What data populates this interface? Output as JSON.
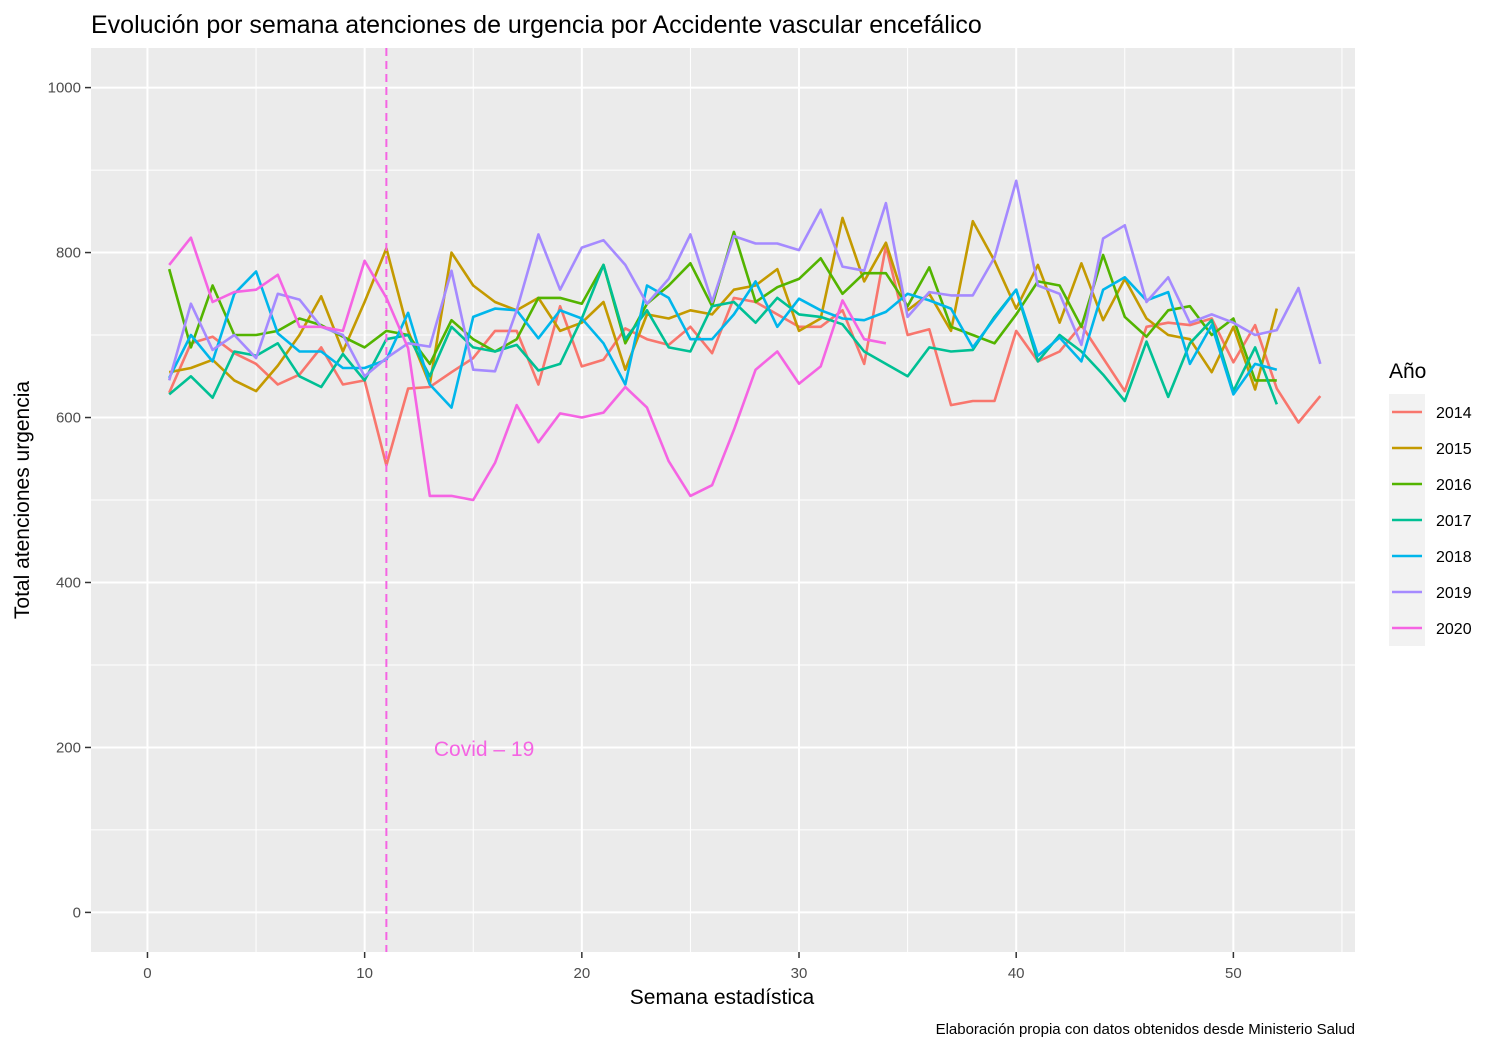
{
  "chart_data": {
    "type": "line",
    "title": "Evolución por semana atenciones de urgencia por Accidente vascular encefálico",
    "xlabel": "Semana estadística",
    "ylabel": "Total atenciones urgencia",
    "caption": "Elaboración propia con datos obtenidos desde Ministerio Salud",
    "xlim": [
      -2.6,
      55.6
    ],
    "ylim": [
      -48,
      1048
    ],
    "xticks": [
      0,
      10,
      20,
      30,
      40,
      50
    ],
    "yticks": [
      0,
      200,
      400,
      600,
      800,
      1000
    ],
    "grid": true,
    "legend": {
      "title": "Año",
      "position": "right"
    },
    "annotation": {
      "type": "vline",
      "x": 11,
      "color": "#F564E3",
      "style": "dashed",
      "label": "Covid – 19",
      "label_x": 15.5,
      "label_y": 198
    },
    "series": [
      {
        "name": "2014",
        "color": "#F8766D",
        "values": [
          630,
          690,
          698,
          678,
          665,
          640,
          652,
          685,
          640,
          645,
          542,
          635,
          637,
          655,
          672,
          705,
          705,
          640,
          735,
          662,
          670,
          708,
          695,
          688,
          710,
          678,
          745,
          740,
          725,
          710,
          710,
          730,
          665,
          808,
          700,
          707,
          615,
          620,
          620,
          705,
          668,
          680,
          712,
          672,
          632,
          710,
          715,
          712,
          720,
          667,
          712,
          635,
          594,
          626
        ]
      },
      {
        "name": "2015",
        "color": "#C49A00",
        "values": [
          655,
          660,
          670,
          645,
          632,
          663,
          700,
          747,
          680,
          740,
          805,
          705,
          640,
          800,
          760,
          740,
          730,
          745,
          705,
          715,
          740,
          658,
          725,
          720,
          730,
          725,
          755,
          760,
          780,
          705,
          720,
          842,
          765,
          812,
          730,
          750,
          705,
          838,
          790,
          732,
          785,
          715,
          787,
          718,
          768,
          720,
          700,
          695,
          655,
          710,
          634,
          732
        ]
      },
      {
        "name": "2016",
        "color": "#53B400",
        "values": [
          780,
          685,
          760,
          700,
          700,
          705,
          720,
          712,
          698,
          685,
          705,
          700,
          665,
          718,
          695,
          680,
          695,
          745,
          745,
          738,
          785,
          690,
          738,
          760,
          787,
          735,
          825,
          740,
          758,
          768,
          793,
          750,
          775,
          775,
          735,
          782,
          710,
          700,
          690,
          725,
          765,
          760,
          710,
          797,
          722,
          698,
          730,
          735,
          700,
          720,
          645,
          645
        ]
      },
      {
        "name": "2017",
        "color": "#00C094",
        "values": [
          628,
          650,
          624,
          680,
          675,
          690,
          650,
          637,
          677,
          645,
          695,
          700,
          650,
          710,
          685,
          680,
          688,
          657,
          665,
          720,
          785,
          695,
          730,
          685,
          680,
          735,
          740,
          715,
          745,
          725,
          722,
          713,
          680,
          665,
          650,
          685,
          680,
          682,
          722,
          755,
          668,
          700,
          680,
          652,
          620,
          692,
          625,
          690,
          718,
          632,
          685,
          616
        ]
      },
      {
        "name": "2018",
        "color": "#00B6EB",
        "values": [
          648,
          700,
          668,
          750,
          777,
          702,
          680,
          680,
          660,
          660,
          670,
          727,
          640,
          612,
          722,
          732,
          730,
          696,
          730,
          720,
          690,
          640,
          760,
          745,
          695,
          695,
          725,
          765,
          710,
          744,
          730,
          720,
          718,
          728,
          750,
          742,
          732,
          685,
          720,
          755,
          675,
          697,
          668,
          755,
          770,
          742,
          752,
          665,
          712,
          628,
          665,
          658
        ]
      },
      {
        "name": "2019",
        "color": "#A58AFF",
        "values": [
          645,
          738,
          682,
          700,
          672,
          750,
          743,
          710,
          700,
          650,
          672,
          690,
          686,
          778,
          658,
          656,
          730,
          822,
          755,
          806,
          815,
          785,
          738,
          768,
          822,
          740,
          820,
          811,
          811,
          803,
          852,
          783,
          778,
          860,
          722,
          752,
          748,
          748,
          794,
          887,
          760,
          750,
          688,
          817,
          833,
          740,
          770,
          715,
          725,
          715,
          700,
          706,
          757,
          665
        ]
      },
      {
        "name": "2020",
        "color": "#F564E3",
        "values": [
          785,
          818,
          740,
          752,
          755,
          773,
          710,
          710,
          705,
          790,
          745,
          684,
          505,
          505,
          500,
          545,
          615,
          570,
          605,
          600,
          606,
          637,
          612,
          547,
          505,
          518,
          585,
          658,
          680,
          641,
          662,
          742,
          695,
          690
        ]
      }
    ]
  }
}
